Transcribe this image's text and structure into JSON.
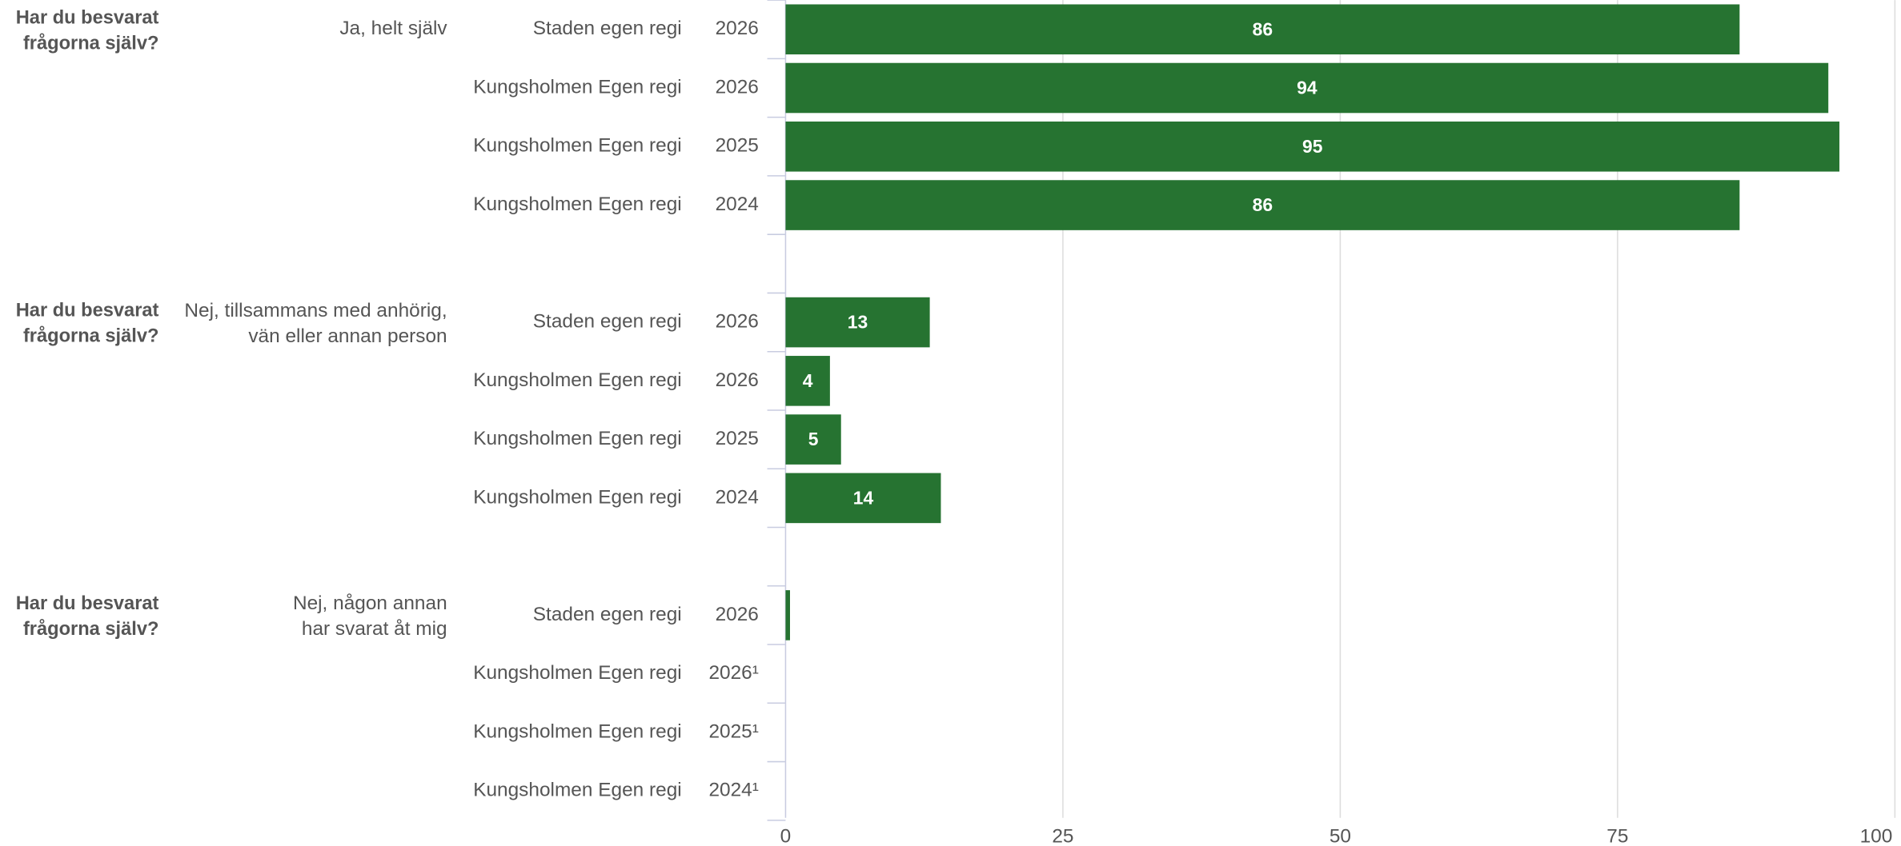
{
  "chart_data": {
    "type": "bar",
    "orientation": "horizontal",
    "color": "#267331",
    "xlim": [
      0,
      100
    ],
    "xticks": [
      0,
      25,
      50,
      75,
      100
    ],
    "grid": true,
    "groups": [
      {
        "question": [
          "Har du besvarat",
          "frågorna själv?"
        ],
        "answer": [
          "Ja, helt själv"
        ],
        "categories": [
          "Staden egen regi",
          "Kungsholmen Egen regi",
          "Kungsholmen Egen regi",
          "Kungsholmen Egen regi"
        ],
        "years": [
          "2026",
          "2026",
          "2025",
          "2024"
        ],
        "values": [
          86,
          94,
          95,
          86
        ]
      },
      {
        "question": [
          "Har du besvarat",
          "frågorna själv?"
        ],
        "answer": [
          "Nej, tillsammans med anhörig,",
          "vän eller annan person"
        ],
        "categories": [
          "Staden egen regi",
          "Kungsholmen Egen regi",
          "Kungsholmen Egen regi",
          "Kungsholmen Egen regi"
        ],
        "years": [
          "2026",
          "2026",
          "2025",
          "2024"
        ],
        "values": [
          13,
          4,
          5,
          14
        ]
      },
      {
        "question": [
          "Har du besvarat",
          "frågorna själv?"
        ],
        "answer": [
          "Nej, någon annan",
          "har svarat åt mig"
        ],
        "categories": [
          "Staden egen regi",
          "Kungsholmen Egen regi",
          "Kungsholmen Egen regi",
          "Kungsholmen Egen regi"
        ],
        "years": [
          "2026",
          "2026¹",
          "2025¹",
          "2024¹"
        ],
        "values": [
          0.4,
          null,
          null,
          null
        ]
      }
    ]
  }
}
